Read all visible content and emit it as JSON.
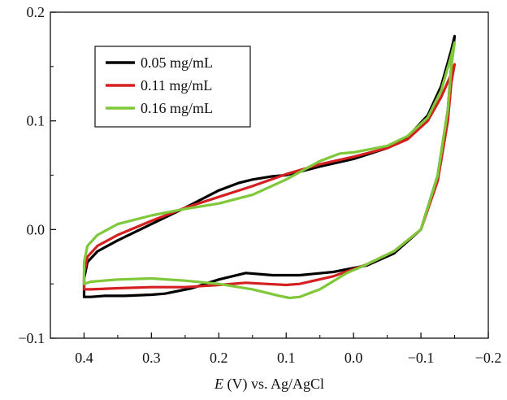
{
  "chart_data": {
    "type": "line",
    "title": "",
    "xlabel": {
      "symbol": "E",
      "rest": " (V) vs. Ag/AgCl"
    },
    "ylabel": "",
    "xlim": [
      0.45,
      -0.2
    ],
    "ylim": [
      -0.1,
      0.2
    ],
    "xticks": [
      0.4,
      0.3,
      0.2,
      0.1,
      0.0,
      -0.1,
      -0.2
    ],
    "xtick_labels": [
      "0.4",
      "0.3",
      "0.2",
      "0.1",
      "0.0",
      "−0.1",
      "−0.2"
    ],
    "yticks": [
      -0.1,
      0.0,
      0.1,
      0.2
    ],
    "ytick_labels": [
      "−0.1",
      "0.0",
      "0.1",
      "0.2"
    ],
    "grid": false,
    "legend_position": "top-left",
    "series": [
      {
        "name": "0.05 mg/mL",
        "color": "#000000",
        "x": [
          0.4,
          0.4,
          0.395,
          0.38,
          0.35,
          0.3,
          0.25,
          0.2,
          0.17,
          0.15,
          0.12,
          0.1,
          0.05,
          0.0,
          -0.05,
          -0.08,
          -0.11,
          -0.13,
          -0.145,
          -0.15,
          -0.145,
          -0.14,
          -0.125,
          -0.1,
          -0.06,
          -0.02,
          0.03,
          0.08,
          0.12,
          0.16,
          0.2,
          0.24,
          0.28,
          0.3,
          0.34,
          0.37,
          0.39,
          0.398,
          0.4
        ],
        "y": [
          -0.062,
          -0.045,
          -0.03,
          -0.02,
          -0.01,
          0.005,
          0.02,
          0.036,
          0.043,
          0.046,
          0.049,
          0.05,
          0.058,
          0.065,
          0.075,
          0.085,
          0.105,
          0.132,
          0.165,
          0.178,
          0.15,
          0.11,
          0.05,
          0.0,
          -0.022,
          -0.033,
          -0.039,
          -0.042,
          -0.042,
          -0.04,
          -0.046,
          -0.054,
          -0.059,
          -0.06,
          -0.061,
          -0.061,
          -0.062,
          -0.062,
          -0.062
        ]
      },
      {
        "name": "0.11 mg/mL",
        "color": "#d42020",
        "x": [
          0.4,
          0.4,
          0.395,
          0.38,
          0.35,
          0.3,
          0.25,
          0.2,
          0.15,
          0.1,
          0.05,
          0.0,
          -0.05,
          -0.08,
          -0.11,
          -0.13,
          -0.145,
          -0.15,
          -0.145,
          -0.14,
          -0.125,
          -0.1,
          -0.06,
          -0.02,
          0.03,
          0.08,
          0.1,
          0.13,
          0.16,
          0.2,
          0.25,
          0.3,
          0.35,
          0.39,
          0.4
        ],
        "y": [
          -0.055,
          -0.04,
          -0.025,
          -0.015,
          -0.005,
          0.008,
          0.02,
          0.03,
          0.04,
          0.051,
          0.06,
          0.067,
          0.075,
          0.083,
          0.1,
          0.122,
          0.143,
          0.152,
          0.135,
          0.1,
          0.045,
          0.0,
          -0.02,
          -0.032,
          -0.043,
          -0.05,
          -0.051,
          -0.05,
          -0.049,
          -0.051,
          -0.053,
          -0.053,
          -0.054,
          -0.055,
          -0.055
        ]
      },
      {
        "name": "0.16 mg/mL",
        "color": "#7ec83a",
        "x": [
          0.4,
          0.4,
          0.395,
          0.38,
          0.35,
          0.3,
          0.25,
          0.2,
          0.15,
          0.1,
          0.05,
          0.02,
          0.0,
          -0.05,
          -0.08,
          -0.11,
          -0.13,
          -0.145,
          -0.15,
          -0.145,
          -0.14,
          -0.125,
          -0.1,
          -0.06,
          -0.02,
          0.01,
          0.05,
          0.08,
          0.095,
          0.11,
          0.15,
          0.2,
          0.25,
          0.3,
          0.35,
          0.39,
          0.4
        ],
        "y": [
          -0.05,
          -0.03,
          -0.015,
          -0.005,
          0.005,
          0.013,
          0.019,
          0.024,
          0.032,
          0.046,
          0.063,
          0.07,
          0.071,
          0.077,
          0.086,
          0.103,
          0.128,
          0.16,
          0.172,
          0.15,
          0.11,
          0.05,
          0.0,
          -0.02,
          -0.032,
          -0.04,
          -0.055,
          -0.062,
          -0.063,
          -0.061,
          -0.055,
          -0.05,
          -0.047,
          -0.045,
          -0.046,
          -0.048,
          -0.05
        ]
      }
    ]
  }
}
